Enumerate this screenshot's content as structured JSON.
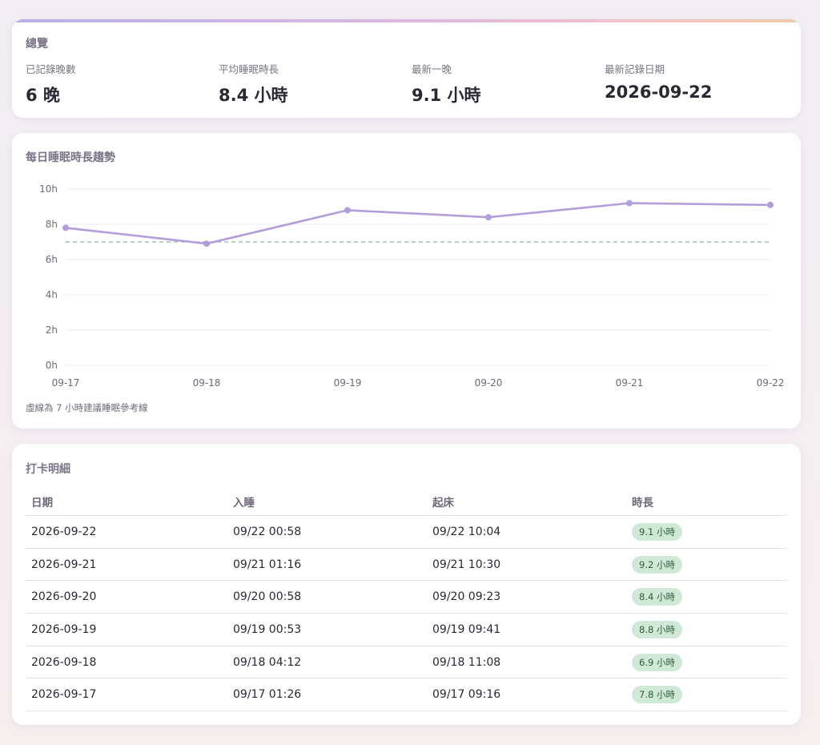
{
  "overview": {
    "title": "總覽",
    "stats": [
      {
        "label": "已記錄晚數",
        "value": "6 晚"
      },
      {
        "label": "平均睡眠時長",
        "value": "8.4 小時"
      },
      {
        "label": "最新一晚",
        "value": "9.1 小時"
      },
      {
        "label": "最新記錄日期",
        "value": "2026-09-22"
      }
    ]
  },
  "trend": {
    "title": "每日睡眠時長趨勢",
    "note": "虛線為 7 小時建議睡眠參考線"
  },
  "chart_data": {
    "type": "line",
    "categories": [
      "09-17",
      "09-18",
      "09-19",
      "09-20",
      "09-21",
      "09-22"
    ],
    "series": [
      {
        "values": [
          7.8,
          6.9,
          8.8,
          8.4,
          9.2,
          9.1
        ],
        "color": "#b39ddb"
      }
    ],
    "reference_line": {
      "value": 7,
      "style": "dashed",
      "color": "#8bb89a"
    },
    "yticks": [
      "0h",
      "2h",
      "4h",
      "6h",
      "8h",
      "10h"
    ],
    "ylim": [
      0,
      10
    ],
    "grid": true,
    "title": "",
    "xlabel": "",
    "ylabel": ""
  },
  "detail": {
    "title": "打卡明細",
    "headers": [
      "日期",
      "入睡",
      "起床",
      "時長"
    ],
    "rows": [
      {
        "date": "2026-09-22",
        "sleep": "09/22 00:58",
        "wake": "09/22 10:04",
        "duration": "9.1 小時"
      },
      {
        "date": "2026-09-21",
        "sleep": "09/21 01:16",
        "wake": "09/21 10:30",
        "duration": "9.2 小時"
      },
      {
        "date": "2026-09-20",
        "sleep": "09/20 00:58",
        "wake": "09/20 09:23",
        "duration": "8.4 小時"
      },
      {
        "date": "2026-09-19",
        "sleep": "09/19 00:53",
        "wake": "09/19 09:41",
        "duration": "8.8 小時"
      },
      {
        "date": "2026-09-18",
        "sleep": "09/18 04:12",
        "wake": "09/18 11:08",
        "duration": "6.9 小時"
      },
      {
        "date": "2026-09-17",
        "sleep": "09/17 01:26",
        "wake": "09/17 09:16",
        "duration": "7.8 小時"
      }
    ]
  },
  "colors": {
    "accent_line": "#b39ddb",
    "reference_line": "#8bb89a",
    "badge_bg": "#cfe9d6",
    "badge_text": "#2f5e3c"
  }
}
